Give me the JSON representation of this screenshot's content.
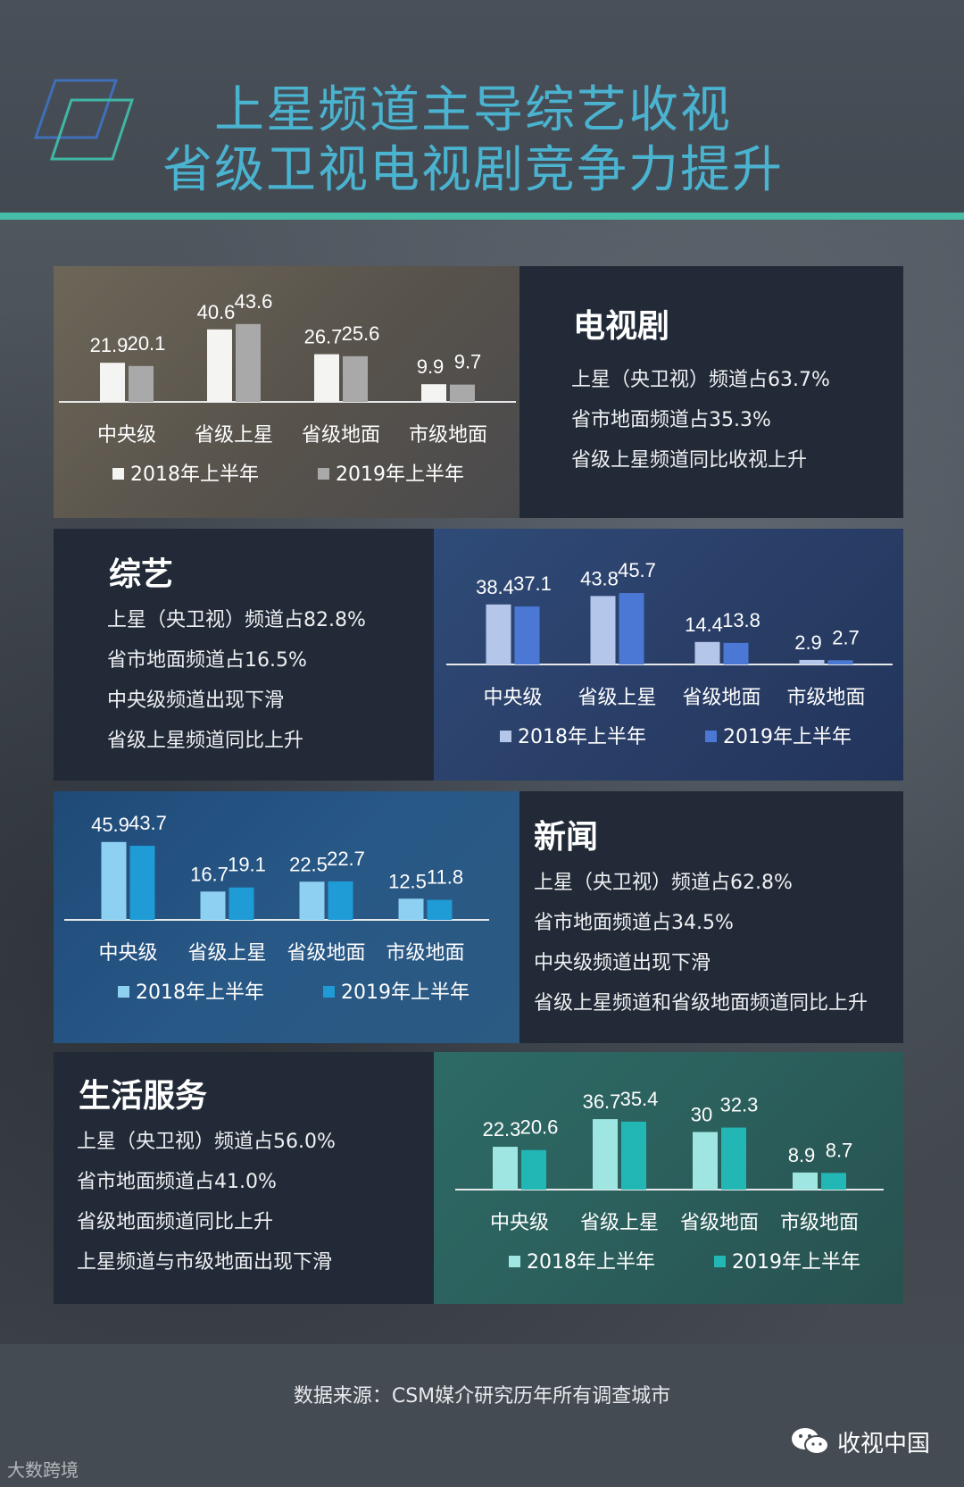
{
  "title": {
    "line1": "上星频道主导综艺收视",
    "line2": "省级卫视电视剧竞争力提升"
  },
  "sections": [
    {
      "title": "电视剧",
      "bullets": [
        "上星（央卫视）频道占63.7%",
        "省市地面频道占35.3%",
        "省级上星频道同比收视上升"
      ]
    },
    {
      "title": "综艺",
      "bullets": [
        "上星（央卫视）频道占82.8%",
        "省市地面频道占16.5%",
        "中央级频道出现下滑",
        "省级上星频道同比上升"
      ]
    },
    {
      "title": "新闻",
      "bullets": [
        "上星（央卫视）频道占62.8%",
        "省市地面频道占34.5%",
        "中央级频道出现下滑",
        "省级上星频道和省级地面频道同比上升"
      ]
    },
    {
      "title": "生活服务",
      "bullets": [
        "上星（央卫视）频道占56.0%",
        "省市地面频道占41.0%",
        "省级地面频道同比上升",
        "上星频道与市级地面出现下滑"
      ]
    }
  ],
  "chart_data": [
    {
      "type": "bar",
      "categories": [
        "中央级",
        "省级上星",
        "省级地面",
        "市级地面"
      ],
      "series": [
        {
          "name": "2018年上半年",
          "values": [
            21.9,
            40.6,
            26.7,
            9.9
          ],
          "color": "#f4f4f2"
        },
        {
          "name": "2019年上半年",
          "values": [
            20.1,
            43.6,
            25.6,
            9.7
          ],
          "color": "#a9a9a9"
        }
      ],
      "labels": [
        [
          "21.9",
          "40.6",
          "26.7",
          "9.9"
        ],
        [
          "20.1",
          "43.6",
          "25.6",
          "9.7"
        ]
      ],
      "legend": "bottom"
    },
    {
      "type": "bar",
      "categories": [
        "中央级",
        "省级上星",
        "省级地面",
        "市级地面"
      ],
      "series": [
        {
          "name": "2018年上半年",
          "values": [
            38.4,
            43.8,
            14.4,
            2.9
          ],
          "color": "#b4c6ea"
        },
        {
          "name": "2019年上半年",
          "values": [
            37.1,
            45.7,
            13.8,
            2.7
          ],
          "color": "#4b78d4"
        }
      ],
      "labels": [
        [
          "38.4",
          "43.8",
          "14.4",
          "2.9"
        ],
        [
          "37.1",
          "45.7",
          "13.8",
          "2.7"
        ]
      ],
      "legend": "bottom"
    },
    {
      "type": "bar",
      "categories": [
        "中央级",
        "省级上星",
        "省级地面",
        "市级地面"
      ],
      "series": [
        {
          "name": "2018年上半年",
          "values": [
            45.9,
            16.7,
            22.5,
            12.5
          ],
          "color": "#8ed0f2"
        },
        {
          "name": "2019年上半年",
          "values": [
            43.7,
            19.1,
            22.7,
            11.8
          ],
          "color": "#1f9bd6"
        }
      ],
      "labels": [
        [
          "45.9",
          "16.7",
          "22.5",
          "12.5"
        ],
        [
          "43.7",
          "19.1",
          "22.7",
          "11.8"
        ]
      ],
      "legend": "bottom"
    },
    {
      "type": "bar",
      "categories": [
        "中央级",
        "省级上星",
        "省级地面",
        "市级地面"
      ],
      "series": [
        {
          "name": "2018年上半年",
          "values": [
            22.3,
            36.7,
            30,
            8.9
          ],
          "color": "#9fe6e3"
        },
        {
          "name": "2019年上半年",
          "values": [
            20.6,
            35.4,
            32.3,
            8.7
          ],
          "color": "#22b6b4"
        }
      ],
      "labels": [
        [
          "22.3",
          "36.7",
          "30",
          "8.9"
        ],
        [
          "20.6",
          "35.4",
          "32.3",
          "8.7"
        ]
      ],
      "legend": "bottom"
    }
  ],
  "footer": {
    "source": "数据来源：CSM媒介研究历年所有调查城市",
    "brand": "收视中国",
    "watermark": "大数跨境"
  }
}
